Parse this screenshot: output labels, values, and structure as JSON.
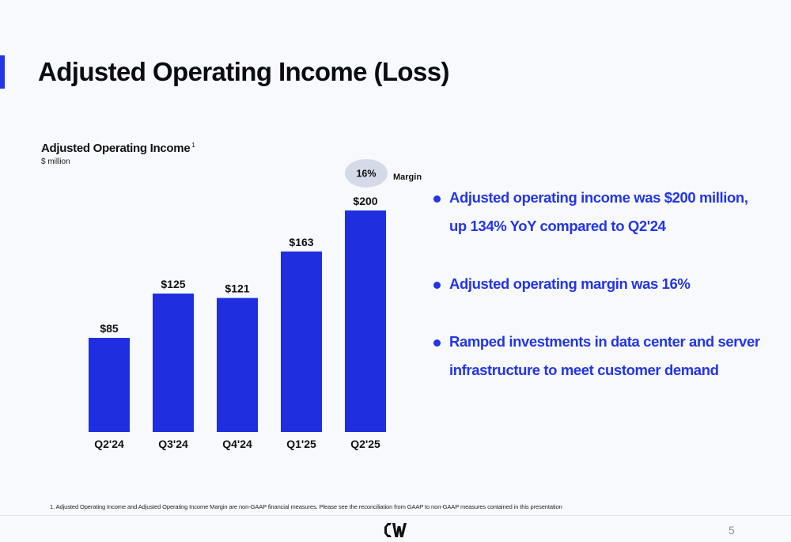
{
  "slide": {
    "title": "Adjusted Operating Income (Loss)",
    "accent_color": "#2335e6",
    "page_number": "5",
    "logo_icon": "coreweave-logo-icon"
  },
  "chart_data": {
    "type": "bar",
    "title": "Adjusted Operating Income",
    "title_footnote_marker": "1",
    "subtitle": "$ million",
    "categories": [
      "Q2'24",
      "Q3'24",
      "Q4'24",
      "Q1'25",
      "Q2'25"
    ],
    "values": [
      85,
      125,
      121,
      163,
      200
    ],
    "value_labels": [
      "$85",
      "$125",
      "$121",
      "$163",
      "$200"
    ],
    "bar_color": "#1f2fe0",
    "ylim": [
      0,
      200
    ],
    "grid": false,
    "legend": null,
    "margin_annotation": {
      "category": "Q2'25",
      "value": "16%",
      "label": "Margin",
      "bubble_color": "#d5dae8"
    }
  },
  "bullets": [
    "Adjusted operating income was $200 million, up 134% YoY compared to Q2'24",
    "Adjusted operating margin was 16%",
    "Ramped investments in data center and server infrastructure to meet customer demand"
  ],
  "footnote": "1.    Adjusted Operating Income and Adjusted Operating Income Margin are non-GAAP financial measures. Please see the reconciliation from GAAP to non-GAAP measures contained in this presentation"
}
